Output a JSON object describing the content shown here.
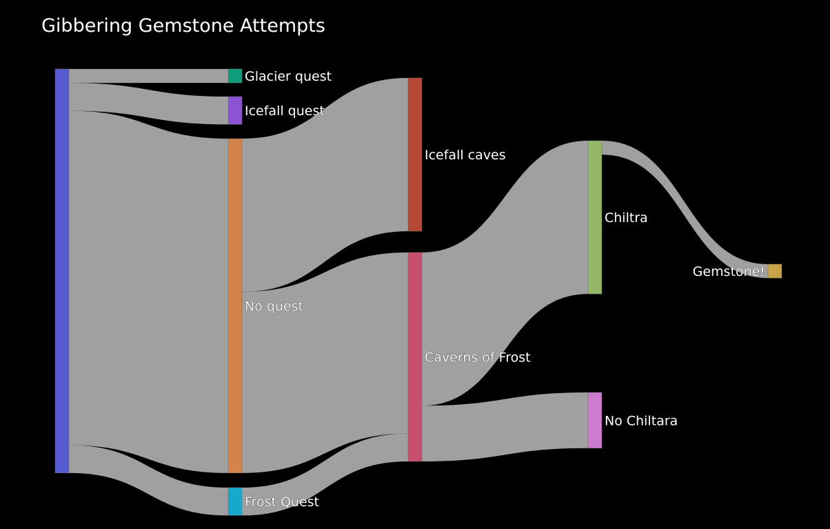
{
  "title": "Gibbering Gemstone Attempts",
  "chart_data": {
    "type": "sankey",
    "title": "Gibbering Gemstone Attempts",
    "nodes": [
      {
        "id": "source",
        "label": "",
        "color": "#575bd3"
      },
      {
        "id": "glacier",
        "label": "Glacier quest",
        "color": "#0f9e7c"
      },
      {
        "id": "icefall_quest",
        "label": "Icefall quest",
        "color": "#8b54d4"
      },
      {
        "id": "no_quest",
        "label": "No quest",
        "color": "#d4844a"
      },
      {
        "id": "frost_quest",
        "label": "Frost Quest",
        "color": "#17a9cc"
      },
      {
        "id": "icefall_caves",
        "label": "Icefall caves",
        "color": "#b44834"
      },
      {
        "id": "caverns",
        "label": "Caverns of Frost",
        "color": "#c8506e"
      },
      {
        "id": "chiltra",
        "label": "Chiltra",
        "color": "#93b767"
      },
      {
        "id": "no_chiltara",
        "label": "No Chiltara",
        "color": "#cc7cd0"
      },
      {
        "id": "gemstone",
        "label": "Gemstone!",
        "color": "#c9a34a"
      }
    ],
    "links": [
      {
        "source": "source",
        "target": "glacier",
        "value": 1
      },
      {
        "source": "source",
        "target": "icefall_quest",
        "value": 2
      },
      {
        "source": "source",
        "target": "no_quest",
        "value": 24
      },
      {
        "source": "source",
        "target": "frost_quest",
        "value": 2
      },
      {
        "source": "no_quest",
        "target": "icefall_caves",
        "value": 11
      },
      {
        "source": "no_quest",
        "target": "caverns",
        "value": 13
      },
      {
        "source": "frost_quest",
        "target": "caverns",
        "value": 2
      },
      {
        "source": "caverns",
        "target": "chiltra",
        "value": 11
      },
      {
        "source": "caverns",
        "target": "no_chiltara",
        "value": 4
      },
      {
        "source": "chiltra",
        "target": "gemstone",
        "value": 1
      }
    ]
  }
}
